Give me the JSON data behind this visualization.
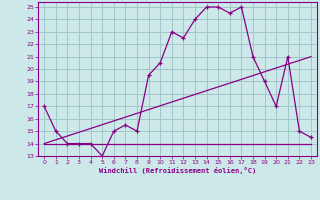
{
  "xlabel": "Windchill (Refroidissement éolien,°C)",
  "background_color": "#cde8e8",
  "grid_color": "#a0c8c8",
  "line_color": "#880088",
  "xlim": [
    -0.5,
    23.5
  ],
  "ylim": [
    13,
    25.4
  ],
  "xticks": [
    0,
    1,
    2,
    3,
    4,
    5,
    6,
    7,
    8,
    9,
    10,
    11,
    12,
    13,
    14,
    15,
    16,
    17,
    18,
    19,
    20,
    21,
    22,
    23
  ],
  "yticks": [
    13,
    14,
    15,
    16,
    17,
    18,
    19,
    20,
    21,
    22,
    23,
    24,
    25
  ],
  "series_main": {
    "x": [
      0,
      1,
      2,
      3,
      4,
      5,
      6,
      7,
      8,
      9,
      10,
      11,
      12,
      13,
      14,
      15,
      16,
      17,
      18,
      19,
      20,
      21,
      22,
      23
    ],
    "y": [
      17,
      15,
      14,
      14,
      14,
      13,
      15,
      15.5,
      15,
      19.5,
      20.5,
      23,
      22.5,
      24,
      25,
      25,
      24.5,
      25,
      21,
      19,
      17,
      21,
      15,
      14.5
    ]
  },
  "series_flat": {
    "x": [
      0,
      23
    ],
    "y": [
      14,
      14
    ]
  },
  "series_diag": {
    "x": [
      0,
      23
    ],
    "y": [
      14,
      21
    ]
  }
}
